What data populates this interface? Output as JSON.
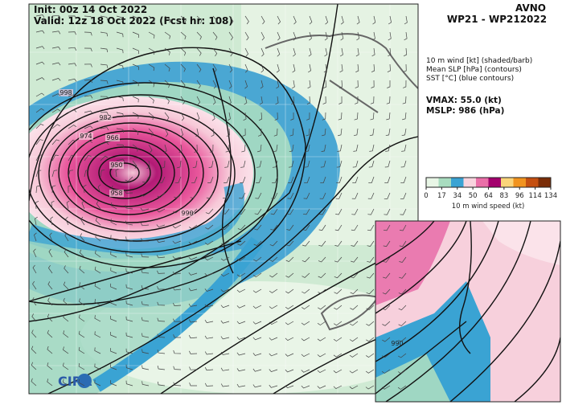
{
  "header": {
    "init": "Init:   00z 14 Oct 2022",
    "valid": "Valid: 12z 18 Oct 2022 (Fcst hr: 108)",
    "model": "AVNO",
    "storm": "WP21 - WP212022"
  },
  "legend": {
    "lines": [
      "10 m wind [kt] (shaded/barb)",
      "Mean SLP [hPa] (contours)",
      "SST [°C] (blue contours)"
    ],
    "vmax": "VMAX:  55.0 (kt)",
    "mslp": "MSLP:  986 (hPa)"
  },
  "colorbar": {
    "ticks": [
      0,
      17,
      34,
      50,
      64,
      83,
      96,
      114,
      134
    ],
    "colors": [
      "#e8f6e6",
      "#a8dcbf",
      "#3aa3d3",
      "#f8d4de",
      "#ea6fa8",
      "#a3006d",
      "#fbd47a",
      "#f1931f",
      "#c44f10",
      "#7a2d08"
    ],
    "label": "10 m wind speed (kt)"
  },
  "contour_labels": [
    "998",
    "982",
    "974",
    "966",
    "950",
    "958",
    "990"
  ],
  "inset": {
    "contour_label": "990"
  },
  "logo": "CIRA"
}
